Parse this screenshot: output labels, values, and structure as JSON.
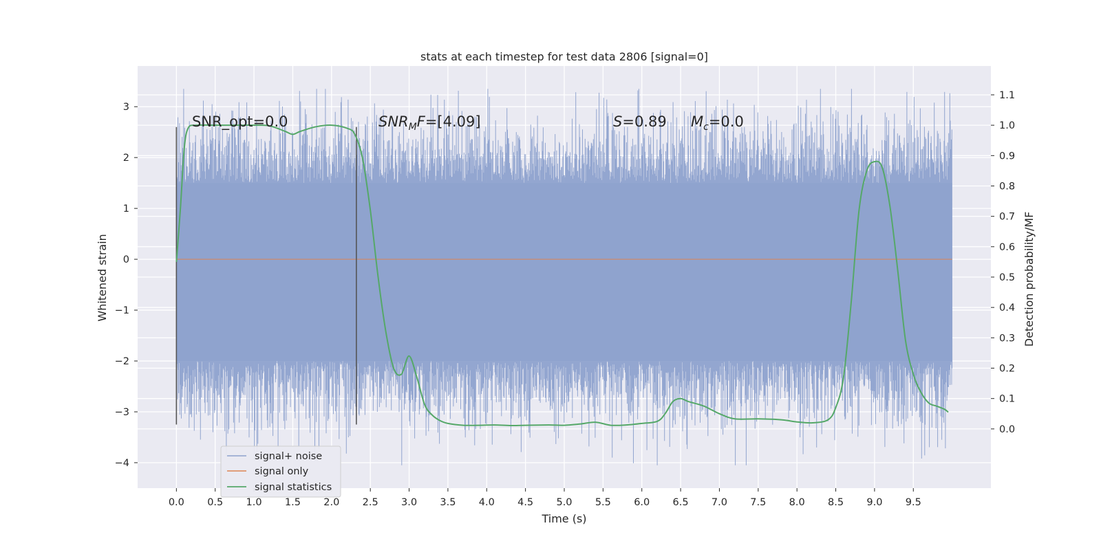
{
  "chart_data": {
    "type": "line",
    "title": "stats at each timestep for test data 2806 [signal=0]",
    "xlabel": "Time (s)",
    "ylabel": "Whitened strain",
    "y2label": "Detection probability/MF",
    "xlim": [
      -0.5,
      10.5
    ],
    "ylim": [
      -4.5,
      3.8
    ],
    "y2lim": [
      -0.195,
      1.195
    ],
    "x_ticks": [
      "0.0",
      "0.5",
      "1.0",
      "1.5",
      "2.0",
      "2.5",
      "3.0",
      "3.5",
      "4.0",
      "4.5",
      "5.0",
      "5.5",
      "6.0",
      "6.5",
      "7.0",
      "7.5",
      "8.0",
      "8.5",
      "9.0",
      "9.5"
    ],
    "y_ticks": [
      "3",
      "2",
      "1",
      "0",
      "−1",
      "−2",
      "−3",
      "−4"
    ],
    "y2_ticks": [
      "1.1",
      "1.0",
      "0.9",
      "0.8",
      "0.7",
      "0.6",
      "0.5",
      "0.4",
      "0.3",
      "0.2",
      "0.1",
      "0.0"
    ],
    "grid": true,
    "legend_position": "lower-left",
    "annotations": {
      "snr_opt": "SNR_opt=0.0",
      "snr_mf": "=[4.09]",
      "s_val": "=0.89",
      "mc_val": "=0.0"
    },
    "markers_x": [
      0.0,
      2.32
    ],
    "series": [
      {
        "name": "signal+ noise",
        "color": "#8ea2cd",
        "axis": "left",
        "x_range": [
          0.0,
          10.0
        ],
        "band_min": [
          -3.2,
          -2.0
        ],
        "band_max": [
          2.6,
          1.5
        ],
        "noise_std": 0.75,
        "peak_max": 3.35,
        "peak_min": -4.05
      },
      {
        "name": "signal only",
        "color": "#dd8452",
        "axis": "left",
        "x": [
          0.0,
          10.0
        ],
        "values": [
          0.0,
          0.0
        ]
      },
      {
        "name": "signal statistics",
        "color": "#55a868",
        "axis": "right",
        "x": [
          0.0,
          0.05,
          0.1,
          0.15,
          0.25,
          0.5,
          0.8,
          1.0,
          1.2,
          1.4,
          1.5,
          1.6,
          1.8,
          2.0,
          2.2,
          2.3,
          2.4,
          2.5,
          2.6,
          2.7,
          2.8,
          2.9,
          3.0,
          3.1,
          3.2,
          3.3,
          3.4,
          3.5,
          3.7,
          3.9,
          4.1,
          4.3,
          4.5,
          4.8,
          5.0,
          5.2,
          5.4,
          5.6,
          5.8,
          6.0,
          6.2,
          6.3,
          6.4,
          6.5,
          6.6,
          6.8,
          7.0,
          7.2,
          7.5,
          7.8,
          8.0,
          8.2,
          8.4,
          8.5,
          8.6,
          8.7,
          8.8,
          8.9,
          9.0,
          9.1,
          9.2,
          9.3,
          9.4,
          9.5,
          9.6,
          9.7,
          9.8,
          9.9,
          9.95
        ],
        "values": [
          0.55,
          0.72,
          0.92,
          0.99,
          1.0,
          1.0,
          1.0,
          1.0,
          0.998,
          0.98,
          0.97,
          0.98,
          0.995,
          1.0,
          0.99,
          0.97,
          0.89,
          0.72,
          0.5,
          0.32,
          0.2,
          0.18,
          0.24,
          0.17,
          0.08,
          0.045,
          0.027,
          0.018,
          0.012,
          0.012,
          0.013,
          0.011,
          0.012,
          0.013,
          0.012,
          0.016,
          0.022,
          0.012,
          0.013,
          0.018,
          0.025,
          0.05,
          0.09,
          0.1,
          0.09,
          0.075,
          0.05,
          0.033,
          0.033,
          0.03,
          0.023,
          0.02,
          0.03,
          0.07,
          0.17,
          0.42,
          0.72,
          0.85,
          0.88,
          0.86,
          0.73,
          0.52,
          0.29,
          0.18,
          0.12,
          0.085,
          0.075,
          0.065,
          0.055
        ]
      }
    ]
  }
}
